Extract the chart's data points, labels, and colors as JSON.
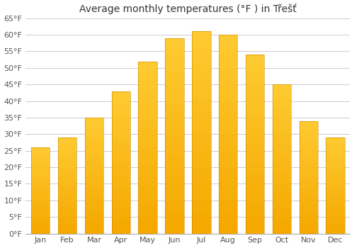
{
  "title": "Average monthly temperatures (°F ) in Třešť",
  "months": [
    "Jan",
    "Feb",
    "Mar",
    "Apr",
    "May",
    "Jun",
    "Jul",
    "Aug",
    "Sep",
    "Oct",
    "Nov",
    "Dec"
  ],
  "values": [
    26,
    29,
    35,
    43,
    52,
    59,
    61,
    60,
    54,
    45,
    34,
    29
  ],
  "ylim": [
    0,
    65
  ],
  "yticks": [
    0,
    5,
    10,
    15,
    20,
    25,
    30,
    35,
    40,
    45,
    50,
    55,
    60,
    65
  ],
  "bar_color_top": "#FFCC33",
  "bar_color_bottom": "#F5A800",
  "background_color": "#ffffff",
  "grid_color": "#cccccc",
  "title_fontsize": 10,
  "tick_fontsize": 8,
  "bar_width": 0.7
}
